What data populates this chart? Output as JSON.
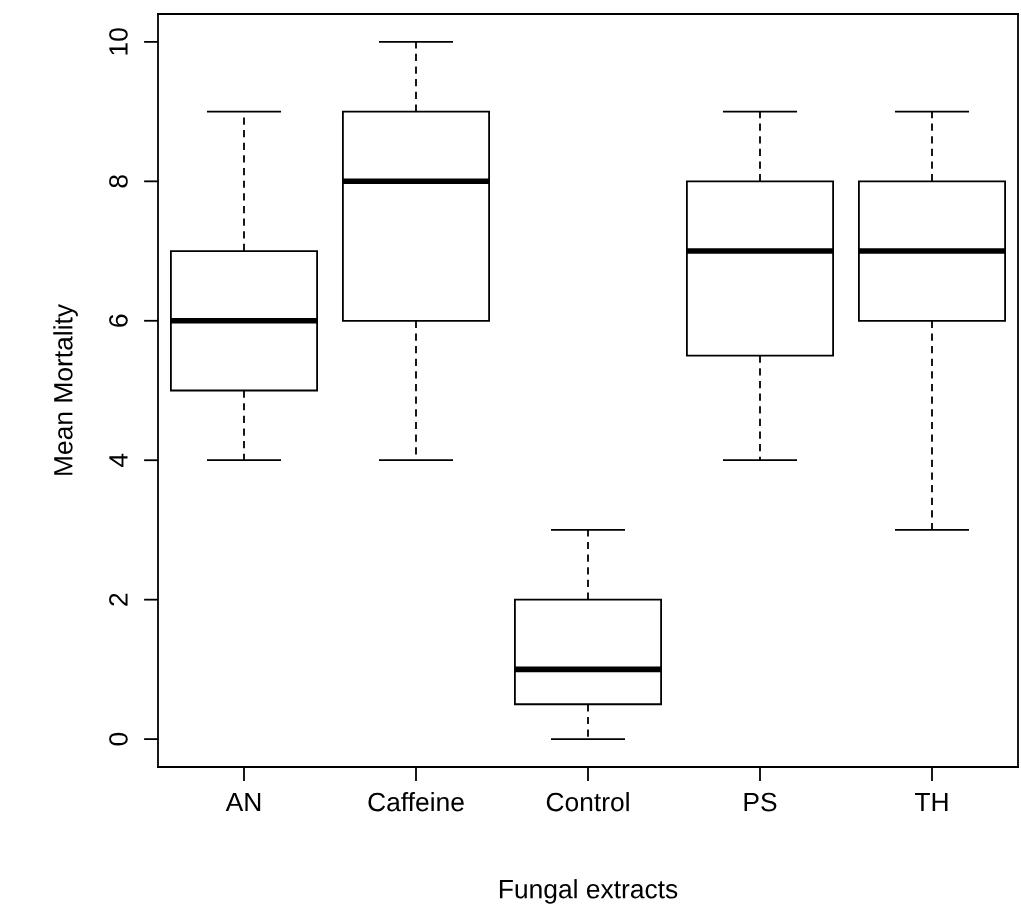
{
  "chart_data": {
    "type": "box",
    "xlabel": "Fungal extracts",
    "ylabel": "Mean Mortality",
    "categories": [
      "AN",
      "Caffeine",
      "Control",
      "PS",
      "TH"
    ],
    "boxes": [
      {
        "low": 4,
        "q1": 5,
        "median": 6,
        "q3": 7,
        "high": 9
      },
      {
        "low": 4,
        "q1": 6,
        "median": 8,
        "q3": 9,
        "high": 10
      },
      {
        "low": 0,
        "q1": 0.5,
        "median": 1,
        "q3": 2,
        "high": 3
      },
      {
        "low": 4,
        "q1": 5.5,
        "median": 7,
        "q3": 8,
        "high": 9
      },
      {
        "low": 3,
        "q1": 6,
        "median": 7,
        "q3": 8,
        "high": 9
      }
    ],
    "ylim": [
      -0.4,
      10.4
    ],
    "yticks": [
      0,
      2,
      4,
      6,
      8,
      10
    ],
    "grid": false
  }
}
